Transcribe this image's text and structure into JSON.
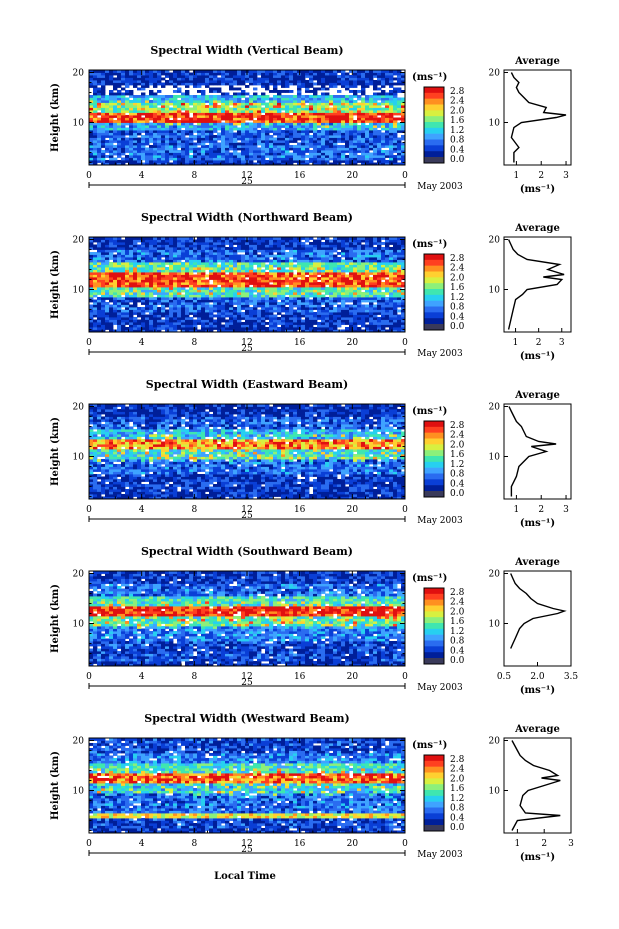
{
  "figure": {
    "xlabel": "Local Time",
    "date_label": "May 2003",
    "day_label": "25",
    "avg_title": "Average",
    "unit_label": "(ms⁻¹)",
    "ylabel": "Height (km)"
  },
  "colorscale": {
    "ticks": [
      "2.8",
      "2.4",
      "2.0",
      "1.6",
      "1.2",
      "0.8",
      "0.4",
      "0.0"
    ],
    "colors": [
      "#001f99",
      "#0a3fd6",
      "#2a6cf0",
      "#3fa3ff",
      "#27d0f0",
      "#3fe6b0",
      "#8cf07a",
      "#d8f040",
      "#ffd030",
      "#ff9020",
      "#ff4020",
      "#e01010"
    ]
  },
  "chart_data": [
    {
      "type": "heatmap",
      "title": "Spectral Width (Vertical Beam)",
      "x_ticks": [
        "0",
        "4",
        "8",
        "12",
        "16",
        "20",
        "0"
      ],
      "xlim": [
        0,
        24
      ],
      "y_ticks": [
        "10",
        "20"
      ],
      "ylim": [
        1.5,
        20.5
      ],
      "unit": "ms-1",
      "layers": [
        {
          "from": 1.5,
          "to": 3,
          "level": 0.2
        },
        {
          "from": 3,
          "to": 6,
          "level": 0.6
        },
        {
          "from": 6,
          "to": 9,
          "level": 0.5
        },
        {
          "from": 9,
          "to": 10.5,
          "level": 0.9
        },
        {
          "from": 10.5,
          "to": 12.5,
          "level": 2.6
        },
        {
          "from": 12.5,
          "to": 14.5,
          "level": 1.6
        },
        {
          "from": 14.5,
          "to": 16,
          "level": 1.0
        },
        {
          "from": 16,
          "to": 18,
          "level": 0.1
        },
        {
          "from": 18,
          "to": 20.5,
          "level": 0.3
        }
      ],
      "average": {
        "x_ticks": [
          "1",
          "2",
          "3"
        ],
        "xlim": [
          0.5,
          3.2
        ],
        "profile": [
          [
            2,
            0.9
          ],
          [
            4,
            0.9
          ],
          [
            5,
            1.1
          ],
          [
            7,
            0.8
          ],
          [
            9,
            0.9
          ],
          [
            10,
            1.2
          ],
          [
            11,
            2.6
          ],
          [
            11.5,
            3.0
          ],
          [
            12,
            2.1
          ],
          [
            13,
            2.2
          ],
          [
            14,
            1.5
          ],
          [
            15,
            1.3
          ],
          [
            16,
            1.1
          ],
          [
            17,
            1.0
          ],
          [
            18,
            1.1
          ],
          [
            19,
            0.9
          ],
          [
            20,
            0.8
          ]
        ]
      }
    },
    {
      "type": "heatmap",
      "title": "Spectral Width (Northward Beam)",
      "x_ticks": [
        "0",
        "4",
        "8",
        "12",
        "16",
        "20",
        "0"
      ],
      "xlim": [
        0,
        24
      ],
      "y_ticks": [
        "10",
        "20"
      ],
      "ylim": [
        1.5,
        20.5
      ],
      "unit": "ms-1",
      "layers": [
        {
          "from": 1.5,
          "to": 3,
          "level": 0.2
        },
        {
          "from": 3,
          "to": 6,
          "level": 0.3
        },
        {
          "from": 6,
          "to": 9,
          "level": 0.5
        },
        {
          "from": 9,
          "to": 11,
          "level": 1.3
        },
        {
          "from": 11,
          "to": 14,
          "level": 2.5
        },
        {
          "from": 14,
          "to": 16,
          "level": 1.4
        },
        {
          "from": 16,
          "to": 18.5,
          "level": 0.6
        },
        {
          "from": 18.5,
          "to": 20.5,
          "level": 0.3
        }
      ],
      "average": {
        "x_ticks": [
          "1",
          "2",
          "3"
        ],
        "xlim": [
          0.5,
          3.4
        ],
        "profile": [
          [
            2,
            0.7
          ],
          [
            4,
            0.8
          ],
          [
            6,
            0.9
          ],
          [
            8,
            1.0
          ],
          [
            9,
            1.3
          ],
          [
            10,
            1.5
          ],
          [
            11,
            2.8
          ],
          [
            12,
            3.0
          ],
          [
            12.5,
            2.2
          ],
          [
            13,
            3.1
          ],
          [
            14,
            2.4
          ],
          [
            15,
            2.9
          ],
          [
            16,
            1.5
          ],
          [
            17,
            1.1
          ],
          [
            18,
            0.9
          ],
          [
            19,
            0.8
          ],
          [
            20,
            0.7
          ]
        ]
      }
    },
    {
      "type": "heatmap",
      "title": "Spectral Width (Eastward Beam)",
      "x_ticks": [
        "0",
        "4",
        "8",
        "12",
        "16",
        "20",
        "0"
      ],
      "xlim": [
        0,
        24
      ],
      "y_ticks": [
        "10",
        "20"
      ],
      "ylim": [
        1.5,
        20.5
      ],
      "unit": "ms-1",
      "layers": [
        {
          "from": 1.5,
          "to": 3,
          "level": 0.2
        },
        {
          "from": 3,
          "to": 7,
          "level": 0.3
        },
        {
          "from": 7,
          "to": 10,
          "level": 0.6
        },
        {
          "from": 10,
          "to": 12,
          "level": 1.2
        },
        {
          "from": 12,
          "to": 14,
          "level": 2.2
        },
        {
          "from": 14,
          "to": 16,
          "level": 1.0
        },
        {
          "from": 16,
          "to": 18.5,
          "level": 0.5
        },
        {
          "from": 18.5,
          "to": 20.5,
          "level": 0.2
        }
      ],
      "average": {
        "x_ticks": [
          "1",
          "2",
          "3"
        ],
        "xlim": [
          0.5,
          3.2
        ],
        "profile": [
          [
            2,
            0.8
          ],
          [
            4,
            0.8
          ],
          [
            6,
            1.0
          ],
          [
            8,
            1.1
          ],
          [
            10,
            1.5
          ],
          [
            11,
            2.2
          ],
          [
            12,
            1.6
          ],
          [
            12.5,
            2.6
          ],
          [
            13,
            1.9
          ],
          [
            14,
            1.4
          ],
          [
            16,
            1.2
          ],
          [
            17,
            1.0
          ],
          [
            18,
            0.9
          ],
          [
            19,
            0.8
          ],
          [
            20,
            0.7
          ]
        ]
      }
    },
    {
      "type": "heatmap",
      "title": "Spectral Width (Southward Beam)",
      "x_ticks": [
        "0",
        "4",
        "8",
        "12",
        "16",
        "20",
        "0"
      ],
      "xlim": [
        0,
        24
      ],
      "y_ticks": [
        "10",
        "20"
      ],
      "ylim": [
        1.5,
        20.5
      ],
      "unit": "ms-1",
      "layers": [
        {
          "from": 1.5,
          "to": 3,
          "level": 0.2
        },
        {
          "from": 3,
          "to": 7,
          "level": 0.4
        },
        {
          "from": 7,
          "to": 10,
          "level": 0.7
        },
        {
          "from": 10,
          "to": 12,
          "level": 1.4
        },
        {
          "from": 12,
          "to": 14,
          "level": 2.7
        },
        {
          "from": 14,
          "to": 16,
          "level": 1.3
        },
        {
          "from": 16,
          "to": 18.5,
          "level": 0.6
        },
        {
          "from": 18.5,
          "to": 20.5,
          "level": 0.3
        }
      ],
      "average": {
        "x_ticks": [
          "0.5",
          "2.0",
          "3.5"
        ],
        "xlim": [
          0.5,
          3.5
        ],
        "profile": [
          [
            5,
            0.8
          ],
          [
            6,
            0.9
          ],
          [
            7,
            1.0
          ],
          [
            8,
            1.1
          ],
          [
            9,
            1.2
          ],
          [
            10,
            1.4
          ],
          [
            11,
            1.8
          ],
          [
            12,
            2.9
          ],
          [
            12.5,
            3.2
          ],
          [
            13,
            2.7
          ],
          [
            14,
            2.0
          ],
          [
            15,
            1.7
          ],
          [
            16,
            1.5
          ],
          [
            17,
            1.2
          ],
          [
            18,
            1.0
          ],
          [
            19,
            0.9
          ],
          [
            20,
            0.8
          ]
        ]
      }
    },
    {
      "type": "heatmap",
      "title": "Spectral Width (Westward Beam)",
      "x_ticks": [
        "0",
        "4",
        "8",
        "12",
        "16",
        "20",
        "0"
      ],
      "xlim": [
        0,
        24
      ],
      "y_ticks": [
        "10",
        "20"
      ],
      "ylim": [
        1.5,
        20.5
      ],
      "unit": "ms-1",
      "layers": [
        {
          "from": 1.5,
          "to": 3,
          "level": 0.2
        },
        {
          "from": 3,
          "to": 5,
          "level": 0.4
        },
        {
          "from": 5,
          "to": 6,
          "level": 2.0
        },
        {
          "from": 6,
          "to": 10,
          "level": 0.6
        },
        {
          "from": 10,
          "to": 12,
          "level": 1.1
        },
        {
          "from": 12,
          "to": 14,
          "level": 2.4
        },
        {
          "from": 14,
          "to": 16,
          "level": 1.3
        },
        {
          "from": 16,
          "to": 18,
          "level": 0.7
        },
        {
          "from": 18,
          "to": 20.5,
          "level": 0.4
        }
      ],
      "average": {
        "x_ticks": [
          "1",
          "2",
          "3"
        ],
        "xlim": [
          0.5,
          3.0
        ],
        "profile": [
          [
            2,
            0.8
          ],
          [
            3,
            0.9
          ],
          [
            4,
            1.0
          ],
          [
            5,
            2.6
          ],
          [
            5.5,
            1.3
          ],
          [
            7,
            1.1
          ],
          [
            9,
            1.2
          ],
          [
            10,
            1.4
          ],
          [
            11,
            2.0
          ],
          [
            12,
            2.6
          ],
          [
            12.5,
            1.9
          ],
          [
            13,
            2.5
          ],
          [
            14,
            2.2
          ],
          [
            15,
            1.6
          ],
          [
            16,
            1.3
          ],
          [
            17,
            1.1
          ],
          [
            18,
            1.0
          ],
          [
            19,
            0.9
          ],
          [
            20,
            0.8
          ]
        ]
      }
    }
  ]
}
